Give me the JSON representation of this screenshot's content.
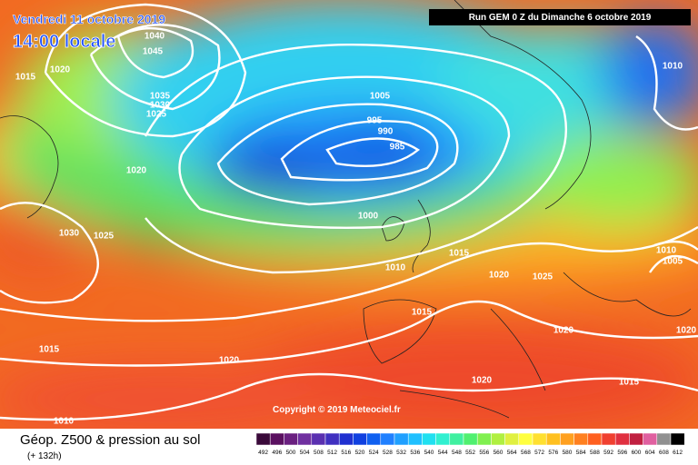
{
  "header": {
    "date": "Vendredi 11 octobre 2019",
    "time": "14:00 locale",
    "run": "Run GEM 0 Z du Dimanche 6 octobre 2019"
  },
  "copyright": "Copyright © 2019 Meteociel.fr",
  "footer": {
    "title": "Géop. Z500 & pression au sol",
    "lead": "(+ 132h)"
  },
  "isobar_labels": [
    "1040",
    "1045",
    "1020",
    "1015",
    "1035",
    "1030",
    "1025",
    "1020",
    "1005",
    "995",
    "990",
    "985",
    "1000",
    "1030",
    "1025",
    "1015",
    "1010",
    "1020",
    "1025",
    "1015",
    "1020",
    "1020",
    "1015",
    "1020",
    "1020",
    "1015",
    "1010",
    "1010",
    "1010",
    "1005"
  ],
  "scale": {
    "labels": [
      "492",
      "496",
      "500",
      "504",
      "508",
      "512",
      "516",
      "520",
      "524",
      "528",
      "532",
      "536",
      "540",
      "544",
      "548",
      "552",
      "556",
      "560",
      "564",
      "568",
      "572",
      "576",
      "580",
      "584",
      "588",
      "592",
      "596",
      "600",
      "604",
      "608",
      "612"
    ],
    "colors": [
      "#3a0a3a",
      "#5a1060",
      "#6a2080",
      "#7030a0",
      "#5a30b0",
      "#4030c0",
      "#2030d0",
      "#1040e0",
      "#1060f0",
      "#2080ff",
      "#20a0ff",
      "#20c0ff",
      "#20e0f0",
      "#30f0d0",
      "#40f0a0",
      "#50f070",
      "#80f050",
      "#b0f040",
      "#e0f040",
      "#ffff40",
      "#ffe030",
      "#ffc020",
      "#ffa020",
      "#ff8020",
      "#ff6020",
      "#f04030",
      "#e03040",
      "#c02040",
      "#e060a0",
      "#909090",
      "#000000"
    ]
  }
}
